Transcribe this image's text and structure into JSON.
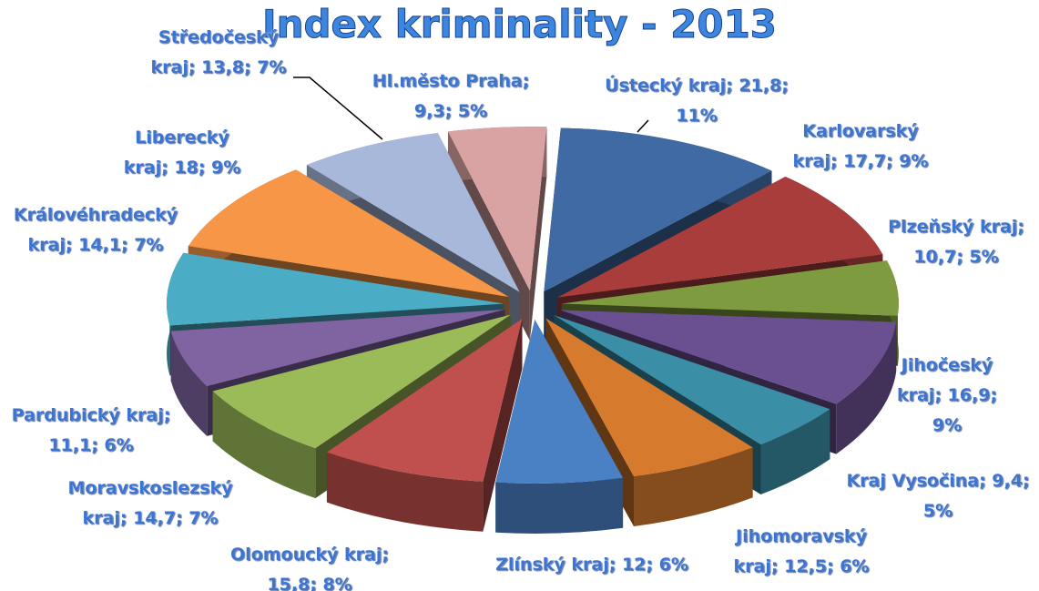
{
  "chart_data": {
    "type": "pie3d",
    "title": "Index kriminality - 2013",
    "categories": [
      "Ústecký kraj",
      "Karlovarský kraj",
      "Plzeňský kraj",
      "Jihočeský kraj",
      "Kraj Vysočina",
      "Jihomoravský kraj",
      "Zlínský kraj",
      "Olomoucký kraj",
      "Moravskoslezský kraj",
      "Pardubický kraj",
      "Královéhradecký kraj",
      "Liberecký kraj",
      "Středočeský kraj",
      "Hl.město Praha"
    ],
    "values": [
      21.8,
      17.7,
      10.7,
      16.9,
      9.4,
      12.5,
      12,
      15.8,
      14.7,
      11.1,
      14.1,
      18,
      13.8,
      9.3
    ],
    "value_labels": [
      "Ústecký kraj; 21,8; 11%",
      "Karlovarský kraj; 17,7; 9%",
      "Plzeňský kraj; 10,7; 5%",
      "Jihočeský kraj; 16,9; 9%",
      "Kraj Vysočina; 9,4; 5%",
      "Jihomoravský kraj; 12,5; 6%",
      "Zlínský kraj; 12; 6%",
      "Olomoucký kraj; 15,8; 8%",
      "Moravskoslezský kraj; 14,7; 7%",
      "Pardubický kraj; 11,1; 6%",
      "Královéhradecký kraj; 14,1; 7%",
      "Liberecký kraj; 18; 9%",
      "Středočeský kraj; 13,8; 7%",
      "Hl.město Praha; 9,3; 5%"
    ],
    "colors": [
      "#3f6aa3",
      "#a83d3b",
      "#7f9b3f",
      "#6a5090",
      "#3a8ea6",
      "#d67a2e",
      "#4a80c4",
      "#c0504d",
      "#9bbb59",
      "#8064a2",
      "#4bacc6",
      "#f79646",
      "#a7b8da",
      "#d9a3a3"
    ]
  }
}
